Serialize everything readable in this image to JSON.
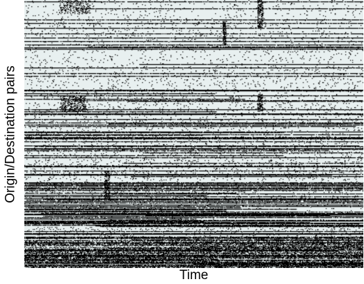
{
  "chart_data": {
    "type": "heatmap",
    "title": "",
    "xlabel": "Time",
    "ylabel": "Origin/Destination pairs",
    "rows": 385,
    "time_steps": 487,
    "value_encoding": "binary occupancy: 1 = black cell, 0 = background",
    "colors": {
      "background": "#e8f0f0",
      "active": "#000000"
    },
    "random_seed": 20240611,
    "row_band_density": [
      {
        "from_row": 0,
        "to_row": 45,
        "dense_line_fraction": 0.1,
        "speckle": 0.025
      },
      {
        "from_row": 45,
        "to_row": 125,
        "dense_line_fraction": 0.14,
        "speckle": 0.03
      },
      {
        "from_row": 125,
        "to_row": 210,
        "dense_line_fraction": 0.3,
        "speckle": 0.04
      },
      {
        "from_row": 210,
        "to_row": 285,
        "dense_line_fraction": 0.4,
        "speckle": 0.05
      },
      {
        "from_row": 285,
        "to_row": 345,
        "dense_line_fraction": 0.55,
        "speckle": 0.06
      },
      {
        "from_row": 345,
        "to_row": 385,
        "dense_line_fraction": 0.3,
        "speckle": 0.45
      }
    ],
    "column_bursts": [
      {
        "from_col": 335,
        "to_col": 343,
        "from_row": 0,
        "to_row": 40,
        "density": 0.5
      },
      {
        "from_col": 335,
        "to_col": 343,
        "from_row": 135,
        "to_row": 160,
        "density": 0.55
      },
      {
        "from_col": 52,
        "to_col": 88,
        "from_row": 138,
        "to_row": 160,
        "density": 0.35
      },
      {
        "from_col": 115,
        "to_col": 123,
        "from_row": 245,
        "to_row": 285,
        "density": 0.45
      },
      {
        "from_col": 285,
        "to_col": 290,
        "from_row": 30,
        "to_row": 65,
        "density": 0.6
      },
      {
        "from_col": 50,
        "to_col": 95,
        "from_row": 0,
        "to_row": 20,
        "density": 0.25
      }
    ]
  }
}
